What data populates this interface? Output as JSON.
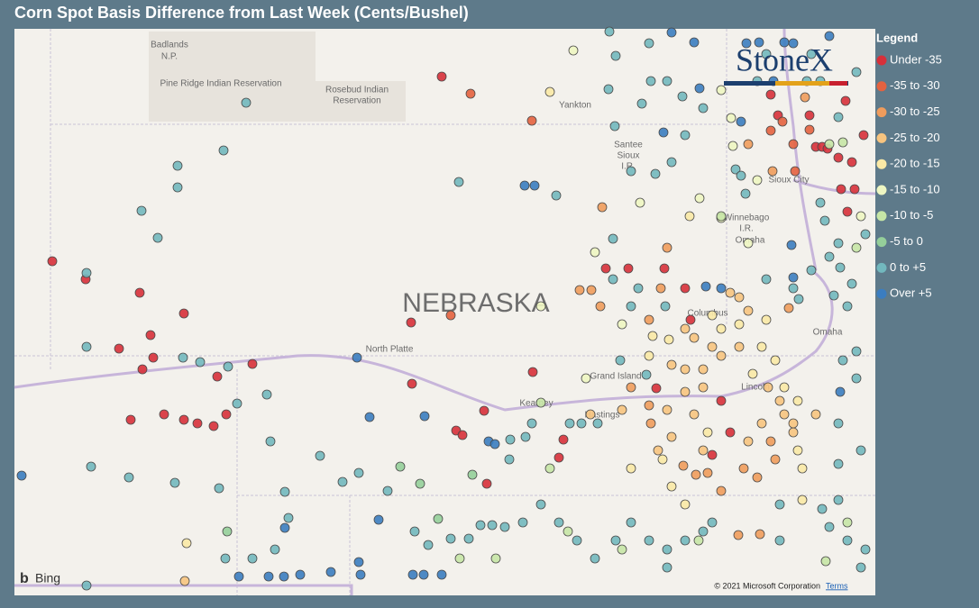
{
  "title": "Corn Spot Basis Difference from Last Week (Cents/Bushel)",
  "legend": {
    "title": "Legend",
    "items": [
      {
        "label": "Under -35",
        "color": "#d7303a"
      },
      {
        "label": "-35 to -30",
        "color": "#e4623f"
      },
      {
        "label": "-30 to -25",
        "color": "#f09c5c"
      },
      {
        "label": "-25 to -20",
        "color": "#f7c47f"
      },
      {
        "label": "-20 to -15",
        "color": "#fae9a6"
      },
      {
        "label": "-15 to -10",
        "color": "#eef6c2"
      },
      {
        "label": "-10 to -5",
        "color": "#c6e6a6"
      },
      {
        "label": "-5 to 0",
        "color": "#95cf9a"
      },
      {
        "label": "0 to +5",
        "color": "#72b8be"
      },
      {
        "label": "Over +5",
        "color": "#3b7dc0"
      }
    ]
  },
  "map_labels": {
    "badlands": "Badlands",
    "np": "N.P.",
    "pine_ridge": "Pine Ridge Indian Reservation",
    "rosebud": "Rosebud Indian",
    "reservation": "Reservation",
    "yankton": "Yankton",
    "santee": "Santee",
    "sioux": "Sioux",
    "ir": "I.R.",
    "sioux_city": "Sioux City",
    "winnebago": "Winnebago",
    "ir2": "I.R.",
    "omaha_ir": "Omaha",
    "nebraska": "NEBRASKA",
    "north_platte": "North Platte",
    "columbus": "Columbus",
    "grand_island": "Grand Island",
    "kearney": "Kearney",
    "hastings": "Hastings",
    "lincoln": "Lincoln",
    "omaha": "Omaha"
  },
  "logo": "StoneX",
  "attribution": {
    "bing": "Bing",
    "copyright": "© 2021 Microsoft Corporation",
    "terms": "Terms"
  }
}
